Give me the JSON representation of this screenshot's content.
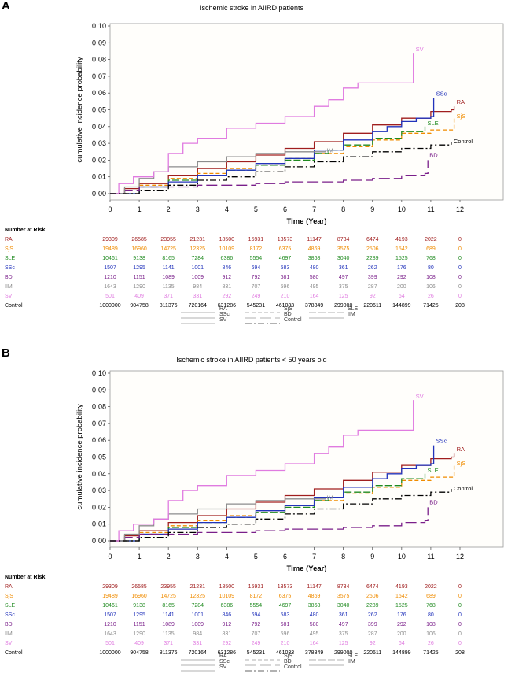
{
  "chart_data": [
    {
      "panel": "A",
      "type": "line",
      "title": "Ischemic stroke in AIIRD patients",
      "xlabel": "Time (Year)",
      "ylabel": "cumulative incidence probability",
      "xlim": [
        0,
        12
      ],
      "ylim": [
        0,
        0.1
      ],
      "x_ticks": [
        "0",
        "1",
        "2",
        "3",
        "4",
        "5",
        "6",
        "7",
        "8",
        "9",
        "10",
        "11",
        "12"
      ],
      "y_ticks": [
        "0·00",
        "0·01",
        "0·02",
        "0·03",
        "0·04",
        "0·05",
        "0·06",
        "0·07",
        "0·08",
        "0·09",
        "0·10"
      ],
      "series": [
        {
          "name": "RA",
          "color": "#a01e1e",
          "dash": "",
          "end_label": "RA",
          "x": [
            0,
            0.5,
            1,
            2,
            3,
            4,
            5,
            6,
            7,
            8,
            9,
            10,
            11,
            11.7,
            11.8
          ],
          "y": [
            0,
            0.003,
            0.006,
            0.011,
            0.015,
            0.019,
            0.023,
            0.027,
            0.031,
            0.036,
            0.041,
            0.045,
            0.049,
            0.05,
            0.052
          ]
        },
        {
          "name": "SjS",
          "color": "#f08c00",
          "dash": "5,3",
          "end_label": "SjS",
          "x": [
            0,
            1,
            2,
            3,
            4,
            5,
            6,
            7,
            8,
            9,
            10,
            11,
            11.8
          ],
          "y": [
            0,
            0.005,
            0.009,
            0.012,
            0.015,
            0.018,
            0.021,
            0.024,
            0.028,
            0.032,
            0.036,
            0.038,
            0.045
          ]
        },
        {
          "name": "SLE",
          "color": "#1f8a1f",
          "dash": "9,3",
          "end_label": "SLE",
          "x": [
            0,
            1,
            2,
            3,
            4,
            5,
            6,
            7,
            7.5,
            8,
            9,
            10,
            10.8
          ],
          "y": [
            0,
            0.004,
            0.008,
            0.011,
            0.014,
            0.017,
            0.02,
            0.024,
            0.026,
            0.029,
            0.033,
            0.037,
            0.04
          ]
        },
        {
          "name": "SSc",
          "color": "#2233bb",
          "dash": "",
          "end_label": "SSc",
          "x": [
            0,
            1,
            2,
            3,
            4,
            5,
            6,
            7,
            8,
            9,
            9.5,
            10,
            10.5,
            11,
            11.1
          ],
          "y": [
            0,
            0.004,
            0.007,
            0.011,
            0.014,
            0.018,
            0.021,
            0.026,
            0.032,
            0.037,
            0.04,
            0.043,
            0.045,
            0.046,
            0.057
          ]
        },
        {
          "name": "BD",
          "color": "#7a1f8a",
          "dash": "14,5",
          "end_label": "BD",
          "x": [
            0,
            0.5,
            1,
            2,
            3,
            4,
            5,
            6,
            7,
            8,
            9,
            10,
            10.8,
            10.9
          ],
          "y": [
            0,
            0.002,
            0.004,
            0.004,
            0.005,
            0.005,
            0.006,
            0.007,
            0.007,
            0.008,
            0.009,
            0.011,
            0.012,
            0.02
          ]
        },
        {
          "name": "IIM",
          "color": "#8c8c8c",
          "dash": "",
          "end_label": "IIM",
          "x": [
            0,
            0.5,
            1,
            1.5,
            2,
            3,
            4,
            5,
            6,
            7,
            7.4
          ],
          "y": [
            0,
            0.004,
            0.009,
            0.013,
            0.016,
            0.019,
            0.022,
            0.024,
            0.025,
            0.025,
            0.026
          ]
        },
        {
          "name": "SV",
          "color": "#e07be0",
          "dash": "",
          "end_label": "SV",
          "x": [
            0,
            0.3,
            0.8,
            1.5,
            2,
            2.5,
            3,
            4,
            5,
            6,
            7,
            7.5,
            8,
            8.5,
            10,
            10.4,
            10.4
          ],
          "y": [
            0,
            0.006,
            0.01,
            0.013,
            0.024,
            0.03,
            0.033,
            0.039,
            0.042,
            0.046,
            0.052,
            0.056,
            0.063,
            0.066,
            0.066,
            0.066,
            0.084
          ]
        },
        {
          "name": "Control",
          "color": "#000000",
          "dash": "8,3,2,3",
          "end_label": "Control",
          "x": [
            0,
            1,
            2,
            3,
            4,
            5,
            6,
            7,
            8,
            9,
            10,
            11,
            11.7
          ],
          "y": [
            0,
            0.002,
            0.005,
            0.008,
            0.01,
            0.013,
            0.016,
            0.019,
            0.022,
            0.025,
            0.027,
            0.029,
            0.031
          ]
        }
      ]
    },
    {
      "panel": "B",
      "type": "line",
      "title": "Ischemic stroke in AIIRD patients < 50 years old",
      "xlabel": "Time (Year)",
      "ylabel": "cumulative incidence probability",
      "xlim": [
        0,
        12
      ],
      "ylim": [
        0,
        0.1
      ],
      "x_ticks": [
        "0",
        "1",
        "2",
        "3",
        "4",
        "5",
        "6",
        "7",
        "8",
        "9",
        "10",
        "11",
        "12"
      ],
      "y_ticks": [
        "0·00",
        "0·01",
        "0·02",
        "0·03",
        "0·04",
        "0·05",
        "0·06",
        "0·07",
        "0·08",
        "0·09",
        "0·10"
      ],
      "series": [
        {
          "name": "RA",
          "color": "#a01e1e",
          "dash": "",
          "end_label": "RA",
          "x": [
            0,
            0.5,
            1,
            2,
            3,
            4,
            5,
            6,
            7,
            8,
            9,
            10,
            11,
            11.7,
            11.8
          ],
          "y": [
            0,
            0.003,
            0.006,
            0.011,
            0.015,
            0.019,
            0.023,
            0.027,
            0.031,
            0.036,
            0.041,
            0.045,
            0.049,
            0.05,
            0.052
          ]
        },
        {
          "name": "SjS",
          "color": "#f08c00",
          "dash": "5,3",
          "end_label": "SjS",
          "x": [
            0,
            1,
            2,
            3,
            4,
            5,
            6,
            7,
            8,
            9,
            10,
            11,
            11.8
          ],
          "y": [
            0,
            0.005,
            0.009,
            0.012,
            0.015,
            0.018,
            0.021,
            0.024,
            0.028,
            0.032,
            0.036,
            0.038,
            0.045
          ]
        },
        {
          "name": "SLE",
          "color": "#1f8a1f",
          "dash": "9,3",
          "end_label": "SLE",
          "x": [
            0,
            1,
            2,
            3,
            4,
            5,
            6,
            7,
            7.5,
            8,
            9,
            10,
            10.8
          ],
          "y": [
            0,
            0.004,
            0.008,
            0.011,
            0.014,
            0.017,
            0.02,
            0.024,
            0.026,
            0.029,
            0.033,
            0.037,
            0.04
          ]
        },
        {
          "name": "SSc",
          "color": "#2233bb",
          "dash": "",
          "end_label": "SSc",
          "x": [
            0,
            1,
            2,
            3,
            4,
            5,
            6,
            7,
            8,
            9,
            9.5,
            10,
            10.5,
            11,
            11.1
          ],
          "y": [
            0,
            0.004,
            0.007,
            0.011,
            0.014,
            0.018,
            0.021,
            0.026,
            0.032,
            0.037,
            0.04,
            0.043,
            0.045,
            0.046,
            0.057
          ]
        },
        {
          "name": "BD",
          "color": "#7a1f8a",
          "dash": "14,5",
          "end_label": "BD",
          "x": [
            0,
            0.5,
            1,
            2,
            3,
            4,
            5,
            6,
            7,
            8,
            9,
            10,
            10.8,
            10.9
          ],
          "y": [
            0,
            0.002,
            0.004,
            0.004,
            0.005,
            0.005,
            0.006,
            0.007,
            0.007,
            0.008,
            0.009,
            0.011,
            0.012,
            0.02
          ]
        },
        {
          "name": "IIM",
          "color": "#8c8c8c",
          "dash": "",
          "end_label": "IIM",
          "x": [
            0,
            0.5,
            1,
            1.5,
            2,
            3,
            4,
            5,
            6,
            7,
            7.4
          ],
          "y": [
            0,
            0.004,
            0.009,
            0.013,
            0.016,
            0.019,
            0.022,
            0.024,
            0.025,
            0.025,
            0.026
          ]
        },
        {
          "name": "SV",
          "color": "#e07be0",
          "dash": "",
          "end_label": "SV",
          "x": [
            0,
            0.3,
            0.8,
            1.5,
            2,
            2.5,
            3,
            4,
            5,
            6,
            7,
            7.5,
            8,
            8.5,
            10,
            10.4,
            10.4
          ],
          "y": [
            0,
            0.006,
            0.01,
            0.013,
            0.024,
            0.03,
            0.033,
            0.039,
            0.042,
            0.046,
            0.052,
            0.056,
            0.063,
            0.066,
            0.066,
            0.066,
            0.084
          ]
        },
        {
          "name": "Control",
          "color": "#000000",
          "dash": "8,3,2,3",
          "end_label": "Control",
          "x": [
            0,
            1,
            2,
            3,
            4,
            5,
            6,
            7,
            8,
            9,
            10,
            11,
            11.7
          ],
          "y": [
            0,
            0.002,
            0.005,
            0.008,
            0.01,
            0.013,
            0.016,
            0.019,
            0.022,
            0.025,
            0.027,
            0.029,
            0.031
          ]
        }
      ]
    }
  ],
  "risk_table": {
    "header": "Number at Risk",
    "rows": [
      {
        "name": "RA",
        "color": "#a01e1e",
        "values": [
          "29309",
          "26585",
          "23955",
          "21231",
          "18500",
          "15931",
          "13573",
          "11147",
          "8734",
          "6474",
          "4193",
          "2022",
          "0"
        ]
      },
      {
        "name": "SjS",
        "color": "#f08c00",
        "values": [
          "19489",
          "16960",
          "14725",
          "12325",
          "10109",
          "8172",
          "6375",
          "4869",
          "3575",
          "2506",
          "1542",
          "689",
          "0"
        ]
      },
      {
        "name": "SLE",
        "color": "#1f8a1f",
        "values": [
          "10461",
          "9138",
          "8165",
          "7284",
          "6386",
          "5554",
          "4697",
          "3868",
          "3040",
          "2289",
          "1525",
          "768",
          "0"
        ]
      },
      {
        "name": "SSc",
        "color": "#2233bb",
        "values": [
          "1507",
          "1295",
          "1141",
          "1001",
          "846",
          "694",
          "583",
          "480",
          "361",
          "262",
          "176",
          "80",
          "0"
        ]
      },
      {
        "name": "BD",
        "color": "#7a1f8a",
        "values": [
          "1210",
          "1151",
          "1089",
          "1009",
          "912",
          "792",
          "681",
          "580",
          "497",
          "399",
          "292",
          "108",
          "0"
        ]
      },
      {
        "name": "IIM",
        "color": "#8c8c8c",
        "values": [
          "1643",
          "1290",
          "1135",
          "984",
          "831",
          "707",
          "596",
          "495",
          "375",
          "287",
          "200",
          "106",
          "0"
        ]
      },
      {
        "name": "SV",
        "color": "#e07be0",
        "values": [
          "501",
          "409",
          "371",
          "331",
          "292",
          "249",
          "210",
          "164",
          "125",
          "92",
          "64",
          "26",
          "0"
        ]
      },
      {
        "name": "Control",
        "color": "#000000",
        "values": [
          "1000000",
          "904758",
          "811376",
          "720164",
          "631286",
          "545231",
          "461033",
          "378849",
          "299000",
          "220611",
          "144899",
          "71425",
          "208"
        ]
      }
    ]
  },
  "legend": {
    "items": [
      {
        "label": "RA",
        "color": "#a01e1e",
        "dash": ""
      },
      {
        "label": "SjS",
        "color": "#f08c00",
        "dash": "5,3"
      },
      {
        "label": "SLE",
        "color": "#1f8a1f",
        "dash": "9,3"
      },
      {
        "label": "SSc",
        "color": "#2233bb",
        "dash": ""
      },
      {
        "label": "BD",
        "color": "#7a1f8a",
        "dash": "14,5"
      },
      {
        "label": "IIM",
        "color": "#8c8c8c",
        "dash": ""
      },
      {
        "label": "SV",
        "color": "#e07be0",
        "dash": ""
      },
      {
        "label": "Control",
        "color": "#000000",
        "dash": "8,3,2,3"
      }
    ]
  }
}
